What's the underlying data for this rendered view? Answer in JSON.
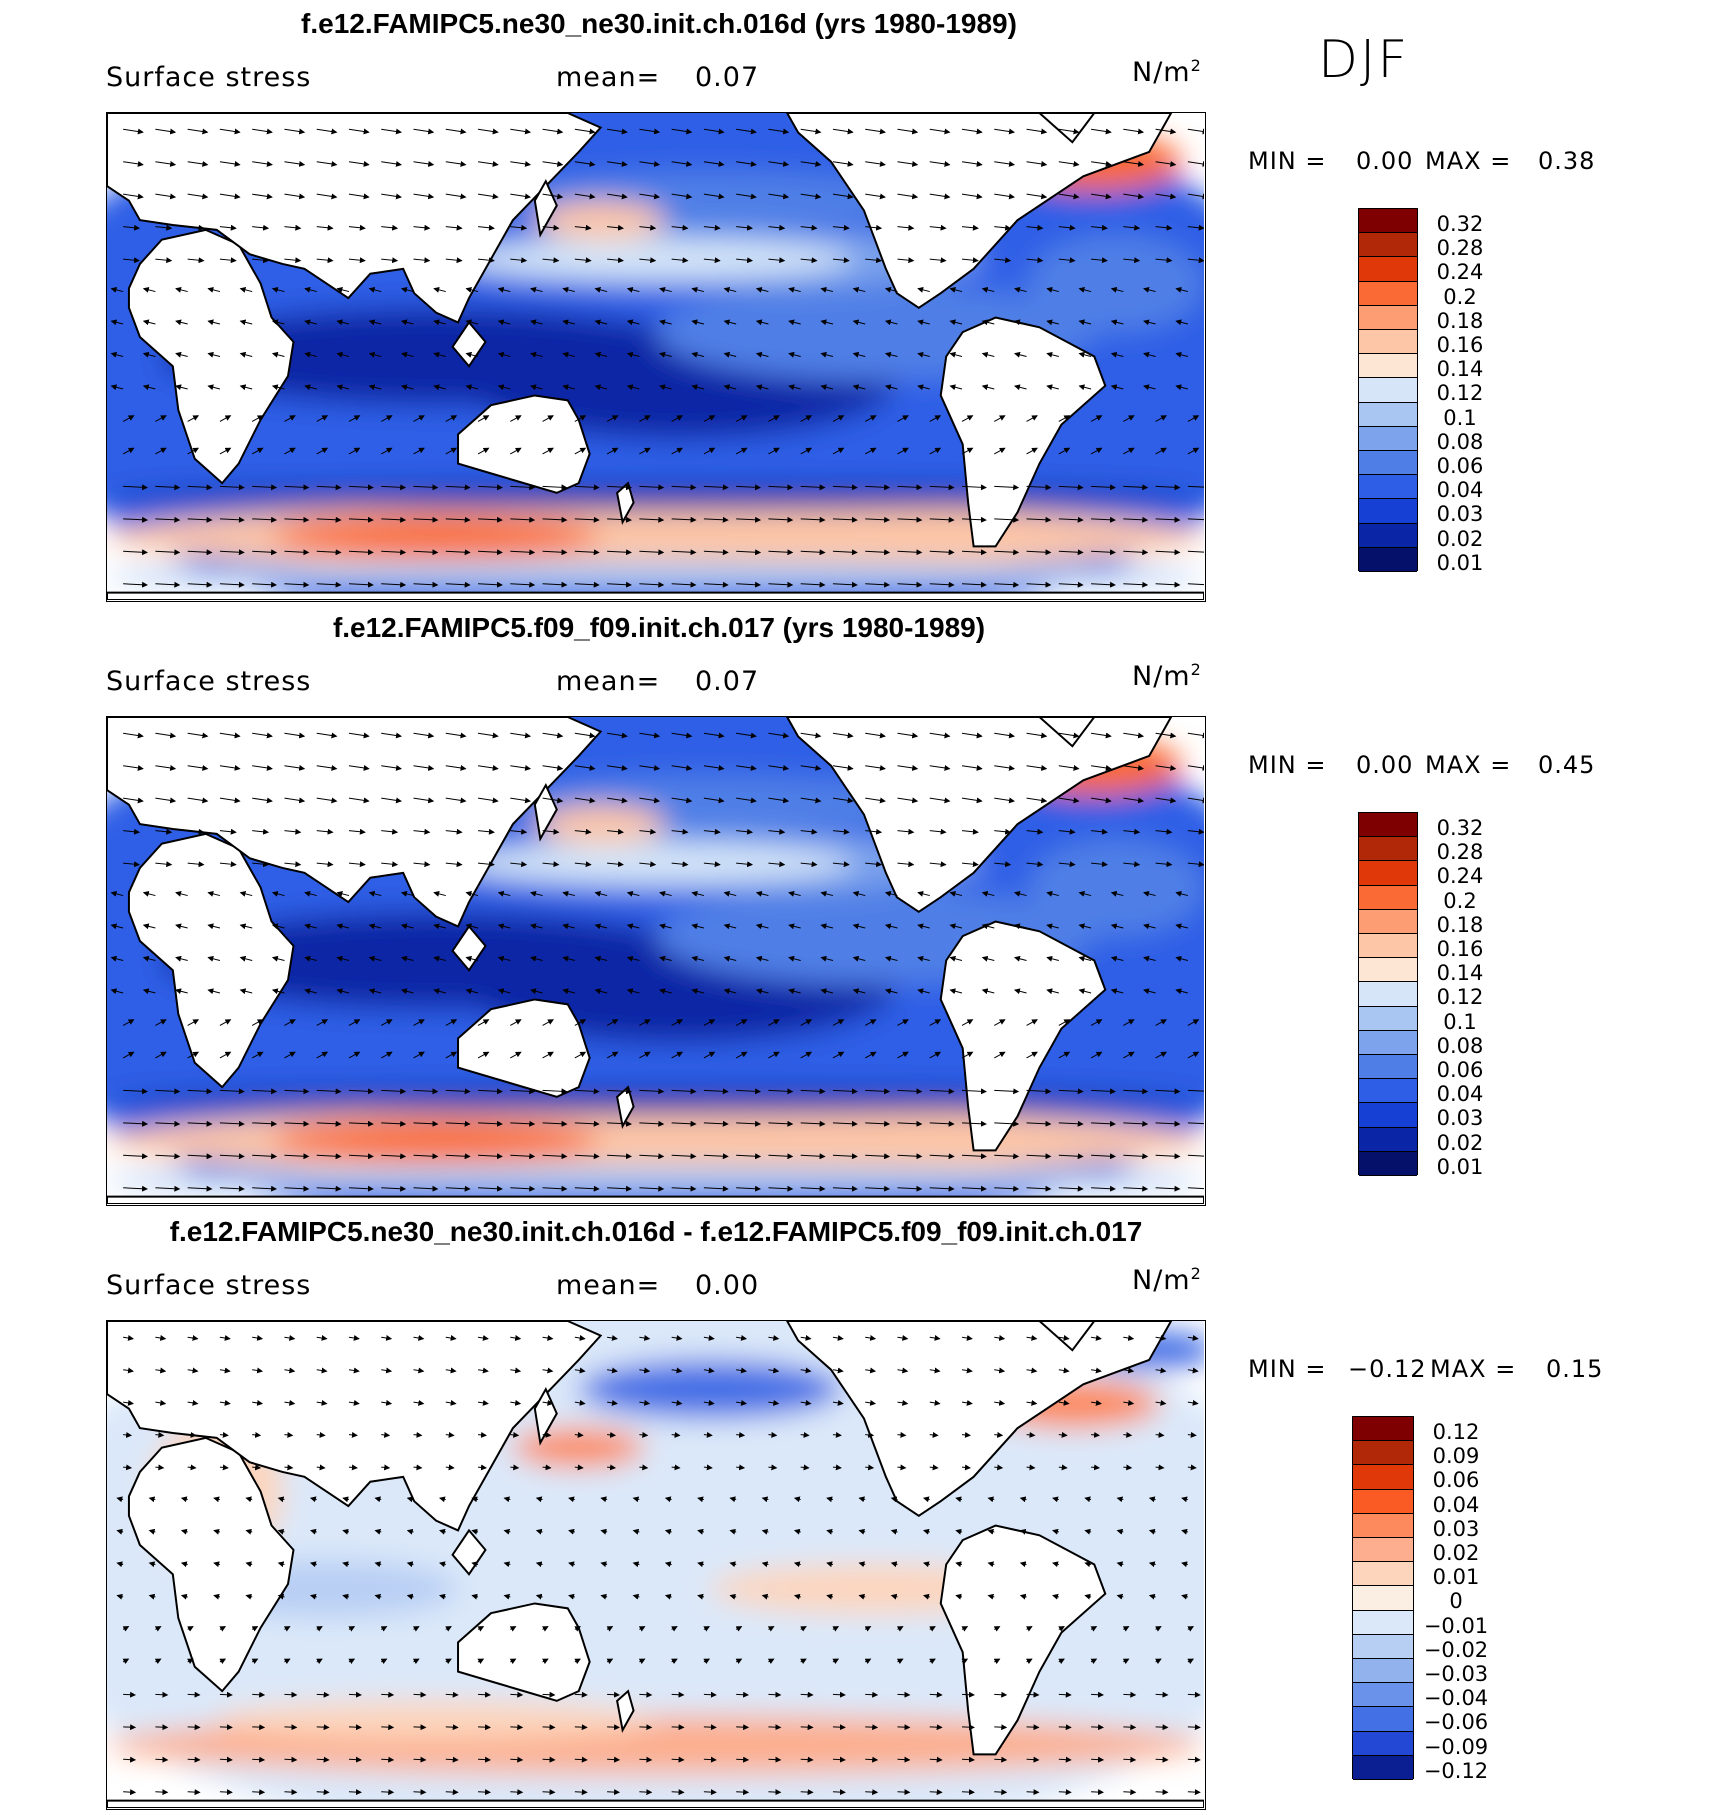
{
  "season": "DJF",
  "panels": [
    {
      "title": "f.e12.FAMIPC5.ne30_ne30.init.ch.016d (yrs 1980-1989)",
      "variable": "Surface stress",
      "mean_label": "mean=",
      "mean_value": "0.07",
      "unit": "N/m",
      "unit_sup": "2",
      "min_label": "MIN =",
      "min_value": "0.00",
      "max_label": "MAX =",
      "max_value": "0.38",
      "scheme": "abs",
      "colorbar": {
        "colors": [
          "#7f0000",
          "#b02808",
          "#e03808",
          "#fa6a34",
          "#fc9d74",
          "#fdc6a6",
          "#fde6d4",
          "#d6e6f8",
          "#a9c6f2",
          "#7ca3ec",
          "#4f7fe6",
          "#2f5ee6",
          "#1640d4",
          "#0a26a6",
          "#04106a"
        ],
        "labels": [
          "0.32",
          "0.28",
          "0.24",
          "0.2",
          "0.18",
          "0.16",
          "0.14",
          "0.12",
          "0.1",
          "0.08",
          "0.06",
          "0.04",
          "0.03",
          "0.02",
          "0.01"
        ]
      }
    },
    {
      "title": "f.e12.FAMIPC5.f09_f09.init.ch.017 (yrs 1980-1989)",
      "variable": "Surface stress",
      "mean_label": "mean=",
      "mean_value": "0.07",
      "unit": "N/m",
      "unit_sup": "2",
      "min_label": "MIN =",
      "min_value": "0.00",
      "max_label": "MAX =",
      "max_value": "0.45",
      "scheme": "abs",
      "colorbar": {
        "colors": [
          "#7f0000",
          "#b02808",
          "#e03808",
          "#fa6a34",
          "#fc9d74",
          "#fdc6a6",
          "#fde6d4",
          "#d6e6f8",
          "#a9c6f2",
          "#7ca3ec",
          "#4f7fe6",
          "#2f5ee6",
          "#1640d4",
          "#0a26a6",
          "#04106a"
        ],
        "labels": [
          "0.32",
          "0.28",
          "0.24",
          "0.2",
          "0.18",
          "0.16",
          "0.14",
          "0.12",
          "0.1",
          "0.08",
          "0.06",
          "0.04",
          "0.03",
          "0.02",
          "0.01"
        ]
      }
    },
    {
      "title": "f.e12.FAMIPC5.ne30_ne30.init.ch.016d - f.e12.FAMIPC5.f09_f09.init.ch.017",
      "variable": "Surface stress",
      "mean_label": "mean=",
      "mean_value": "0.00",
      "unit": "N/m",
      "unit_sup": "2",
      "min_label": "MIN =",
      "min_value": "−0.12",
      "max_label": "MAX =",
      "max_value": "0.15",
      "scheme": "diff",
      "colorbar": {
        "colors": [
          "#7f0000",
          "#b02808",
          "#e03808",
          "#fa5a24",
          "#fc8a5c",
          "#fcae8e",
          "#fdd5bc",
          "#fbeee2",
          "#dbe8f9",
          "#b8cff4",
          "#92b2ee",
          "#6a92ea",
          "#4470e6",
          "#2448d6",
          "#0b1e92"
        ],
        "labels": [
          "0.12",
          "0.09",
          "0.06",
          "0.04",
          "0.03",
          "0.02",
          "0.01",
          "0",
          "−0.01",
          "−0.02",
          "−0.03",
          "−0.04",
          "−0.06",
          "−0.09",
          "−0.12"
        ]
      }
    }
  ]
}
